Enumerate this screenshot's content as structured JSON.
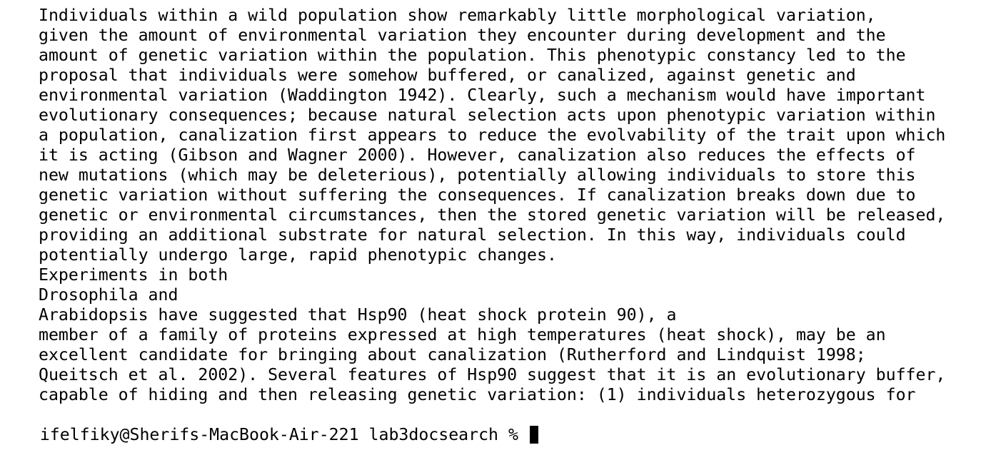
{
  "terminal": {
    "output_lines": [
      "Individuals within a wild population show remarkably little morphological variation,",
      "given the amount of environmental variation they encounter during development and the",
      "amount of genetic variation within the population. This phenotypic constancy led to the",
      "proposal that individuals were somehow buffered, or canalized, against genetic and",
      "environmental variation (Waddington 1942). Clearly, such a mechanism would have important",
      "evolutionary consequences; because natural selection acts upon phenotypic variation within",
      "a population, canalization first appears to reduce the evolvability of the trait upon which",
      "it is acting (Gibson and Wagner 2000). However, canalization also reduces the effects of",
      "new mutations (which may be deleterious), potentially allowing individuals to store this",
      "genetic variation without suffering the consequences. If canalization breaks down due to",
      "genetic or environmental circumstances, then the stored genetic variation will be released,",
      "providing an additional substrate for natural selection. In this way, individuals could",
      "potentially undergo large, rapid phenotypic changes.",
      "Experiments in both",
      "Drosophila and",
      "Arabidopsis have suggested that Hsp90 (heat shock protein 90), a",
      "member of a family of proteins expressed at high temperatures (heat shock), may be an",
      "excellent candidate for bringing about canalization (Rutherford and Lindquist 1998;",
      "Queitsch et al. 2002). Several features of Hsp90 suggest that it is an evolutionary buffer,",
      "capable of hiding and then releasing genetic variation: (1) individuals heterozygous for"
    ],
    "prompt": "ifelfiky@Sherifs-MacBook-Air-221 lab3docsearch % "
  },
  "colors": {
    "background": "#ffffff",
    "text": "#000000",
    "cursor": "#000000"
  }
}
